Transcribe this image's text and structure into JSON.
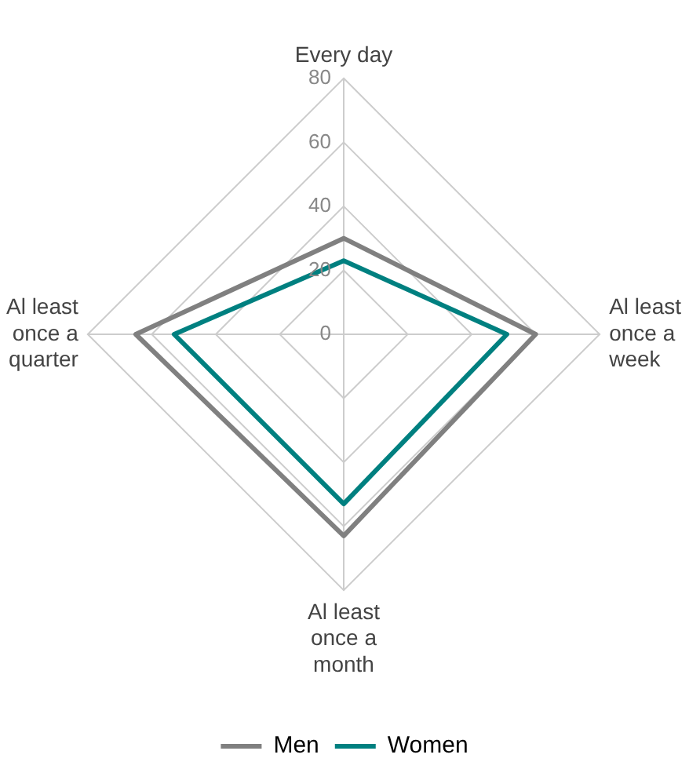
{
  "chart_data": {
    "type": "radar",
    "categories": [
      "Every day",
      "Al least once a week",
      "Al least once a month",
      "Al least once a quarter"
    ],
    "series": [
      {
        "name": "Men",
        "color": "#808080",
        "values": [
          30,
          60,
          63,
          65
        ]
      },
      {
        "name": "Women",
        "color": "#008080",
        "values": [
          23,
          51,
          53,
          53
        ]
      }
    ],
    "ylim": [
      0,
      80
    ],
    "yticks": [
      0,
      20,
      40,
      60,
      80
    ],
    "grid": true,
    "legend": "bottom",
    "marker": "none",
    "line_style": "solid"
  }
}
